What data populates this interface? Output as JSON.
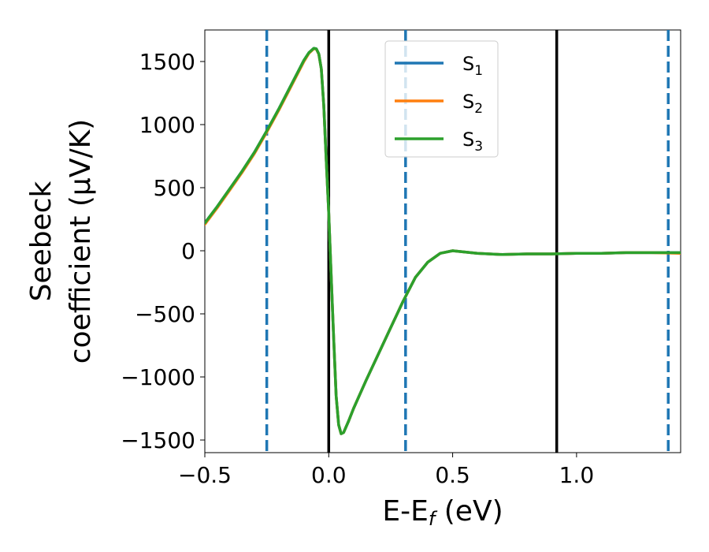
{
  "chart_data": {
    "type": "line",
    "xlabel": "E-E",
    "xlabel_sub": "f",
    "xlabel_unit": " (eV)",
    "ylabel_line1": "Seebeck",
    "ylabel_line2": "coefficient  (μV/K)",
    "xlim": [
      -0.5,
      1.42
    ],
    "ylim": [
      -1600,
      1750
    ],
    "xticks": [
      -0.5,
      0.0,
      0.5,
      1.0
    ],
    "xtick_labels": [
      "−0.5",
      "0.0",
      "0.5",
      "1.0"
    ],
    "yticks": [
      -1500,
      -1000,
      -500,
      0,
      500,
      1000,
      1500
    ],
    "ytick_labels": [
      "−1500",
      "−1000",
      "−500",
      "0",
      "500",
      "1000",
      "1500"
    ],
    "vlines_solid": [
      0.0,
      0.92
    ],
    "vlines_dashed": [
      -0.25,
      0.31,
      1.37
    ],
    "solid_color": "#000000",
    "dashed_color": "#1f77b4",
    "x": [
      -0.5,
      -0.45,
      -0.4,
      -0.35,
      -0.3,
      -0.25,
      -0.2,
      -0.15,
      -0.1,
      -0.08,
      -0.06,
      -0.05,
      -0.04,
      -0.03,
      -0.02,
      -0.01,
      0.0,
      0.01,
      0.02,
      0.03,
      0.04,
      0.05,
      0.06,
      0.08,
      0.1,
      0.15,
      0.2,
      0.25,
      0.3,
      0.35,
      0.4,
      0.45,
      0.5,
      0.55,
      0.6,
      0.7,
      0.8,
      0.9,
      1.0,
      1.1,
      1.2,
      1.3,
      1.42
    ],
    "series": [
      {
        "name": "S",
        "sub": "1",
        "color": "#1f77b4",
        "values": [
          220,
          350,
          490,
          630,
          780,
          950,
          1130,
          1320,
          1510,
          1570,
          1605,
          1600,
          1560,
          1440,
          1150,
          720,
          300,
          -200,
          -700,
          -1150,
          -1380,
          -1450,
          -1440,
          -1350,
          -1250,
          -1030,
          -820,
          -610,
          -400,
          -210,
          -90,
          -20,
          0,
          -10,
          -20,
          -30,
          -25,
          -25,
          -20,
          -20,
          -15,
          -15,
          -15
        ]
      },
      {
        "name": "S",
        "sub": "2",
        "color": "#ff7f0e",
        "values": [
          210,
          340,
          480,
          620,
          770,
          940,
          1120,
          1310,
          1500,
          1565,
          1602,
          1598,
          1558,
          1440,
          1150,
          720,
          300,
          -200,
          -700,
          -1150,
          -1380,
          -1450,
          -1440,
          -1350,
          -1250,
          -1030,
          -820,
          -610,
          -400,
          -210,
          -90,
          -20,
          0,
          -10,
          -20,
          -30,
          -25,
          -25,
          -20,
          -20,
          -15,
          -15,
          -20
        ]
      },
      {
        "name": "S",
        "sub": "3",
        "color": "#2ca02c",
        "values": [
          220,
          350,
          490,
          630,
          780,
          950,
          1130,
          1320,
          1510,
          1570,
          1605,
          1600,
          1560,
          1440,
          1150,
          720,
          300,
          -200,
          -700,
          -1150,
          -1380,
          -1450,
          -1440,
          -1350,
          -1250,
          -1030,
          -820,
          -610,
          -400,
          -210,
          -90,
          -20,
          0,
          -10,
          -20,
          -30,
          -25,
          -25,
          -20,
          -20,
          -15,
          -15,
          -15
        ]
      }
    ],
    "legend_position": "top-center"
  }
}
